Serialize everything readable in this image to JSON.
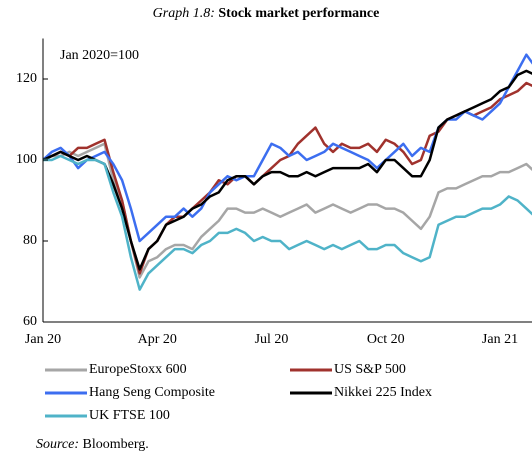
{
  "chart_data": {
    "type": "line",
    "title_label": "Graph 1.8:",
    "title": "Stock market performance",
    "annotation": "Jan 2020=100",
    "source_label": "Source:",
    "source": "Bloomberg.",
    "categories": [
      "Jan 20",
      null,
      null,
      null,
      null,
      null,
      null,
      null,
      null,
      null,
      null,
      null,
      null,
      "Apr 20",
      null,
      null,
      null,
      null,
      null,
      null,
      null,
      null,
      null,
      null,
      null,
      null,
      "Jul 20",
      null,
      null,
      null,
      null,
      null,
      null,
      null,
      null,
      null,
      null,
      null,
      null,
      "Oct 20",
      null,
      null,
      null,
      null,
      null,
      null,
      null,
      null,
      null,
      null,
      null,
      null,
      "Jan 21",
      null,
      null,
      null,
      null
    ],
    "ylim": [
      60,
      130
    ],
    "yticks": [
      60,
      80,
      100,
      120
    ],
    "series": [
      {
        "name": "EuropeStoxx 600",
        "color": "#a6a6a6",
        "values": [
          100,
          101,
          101,
          102,
          101,
          102,
          103,
          104,
          95,
          90,
          80,
          71,
          75,
          76,
          78,
          79,
          79,
          78,
          81,
          83,
          85,
          88,
          88,
          87,
          87,
          88,
          87,
          86,
          87,
          88,
          89,
          87,
          88,
          89,
          88,
          87,
          88,
          89,
          89,
          88,
          88,
          87,
          85,
          83,
          86,
          92,
          93,
          93,
          94,
          95,
          96,
          96,
          97,
          97,
          98,
          99,
          97
        ]
      },
      {
        "name": "US S&P 500",
        "color": "#a0322d",
        "values": [
          100,
          101,
          102,
          101,
          103,
          103,
          104,
          105,
          97,
          90,
          80,
          72,
          78,
          80,
          84,
          86,
          86,
          88,
          90,
          92,
          95,
          94,
          96,
          96,
          94,
          96,
          98,
          100,
          101,
          104,
          106,
          108,
          104,
          102,
          104,
          103,
          103,
          104,
          102,
          105,
          104,
          102,
          99,
          100,
          106,
          107,
          110,
          111,
          112,
          111,
          112,
          113,
          115,
          116,
          117,
          119,
          118
        ]
      },
      {
        "name": "Hang Seng Composite",
        "color": "#3c6ef0",
        "values": [
          100,
          102,
          103,
          101,
          98,
          100,
          101,
          102,
          99,
          95,
          88,
          80,
          82,
          84,
          86,
          86,
          88,
          86,
          88,
          92,
          94,
          96,
          95,
          96,
          96,
          100,
          104,
          103,
          101,
          102,
          100,
          101,
          102,
          104,
          103,
          102,
          101,
          100,
          98,
          100,
          102,
          104,
          101,
          103,
          102,
          108,
          110,
          110,
          112,
          111,
          110,
          112,
          114,
          118,
          122,
          126,
          123
        ]
      },
      {
        "name": "Nikkei 225 Index",
        "color": "#000000",
        "values": [
          100,
          101,
          102,
          101,
          100,
          101,
          100,
          99,
          94,
          88,
          80,
          73,
          78,
          80,
          84,
          85,
          86,
          88,
          89,
          91,
          92,
          95,
          96,
          96,
          94,
          96,
          97,
          97,
          96,
          96,
          97,
          96,
          97,
          98,
          98,
          98,
          98,
          99,
          97,
          100,
          100,
          98,
          96,
          96,
          100,
          108,
          110,
          111,
          112,
          113,
          114,
          115,
          117,
          118,
          121,
          122,
          121
        ]
      },
      {
        "name": "UK FTSE 100",
        "color": "#4fb3c8",
        "values": [
          100,
          100,
          101,
          100,
          99,
          100,
          100,
          99,
          92,
          86,
          76,
          68,
          72,
          74,
          76,
          78,
          78,
          77,
          79,
          80,
          82,
          82,
          83,
          82,
          80,
          81,
          80,
          80,
          78,
          79,
          80,
          79,
          78,
          79,
          78,
          79,
          80,
          78,
          78,
          79,
          79,
          77,
          76,
          75,
          76,
          84,
          85,
          86,
          86,
          87,
          88,
          88,
          89,
          91,
          90,
          88,
          86
        ]
      }
    ]
  }
}
